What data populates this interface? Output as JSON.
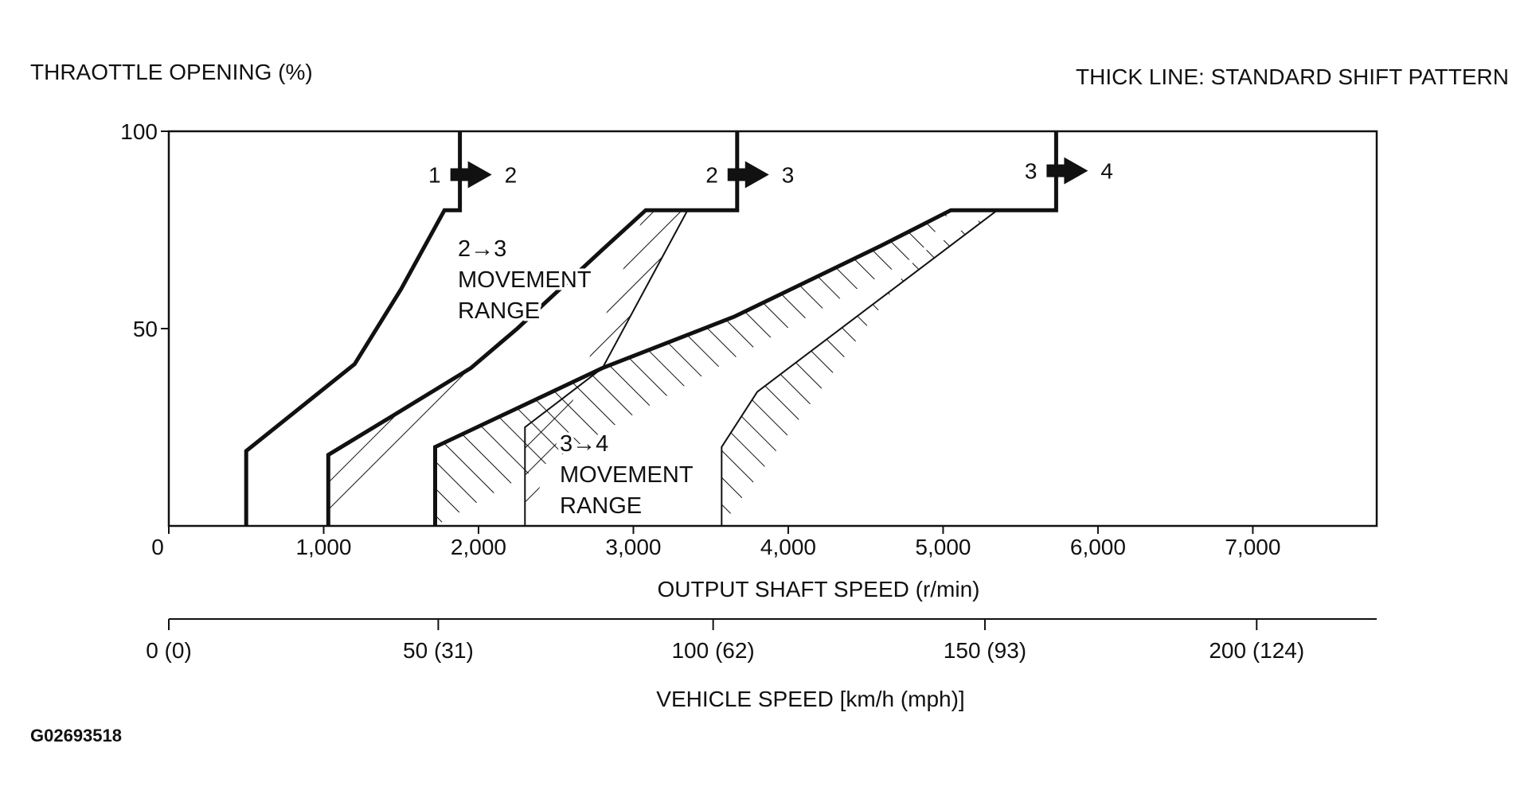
{
  "chart_data": {
    "type": "line",
    "ylabel": "THRAOTTLE OPENING (%)",
    "legend_note": "THICK LINE: STANDARD SHIFT PATTERN",
    "xlabel": "OUTPUT SHAFT SPEED (r/min)",
    "x2label": "VEHICLE SPEED [km/h (mph)]",
    "xlim": [
      0,
      7800
    ],
    "ylim": [
      0,
      100
    ],
    "y_ticks": [
      {
        "v": 100,
        "label": "100"
      },
      {
        "v": 50,
        "label": "50"
      }
    ],
    "x_ticks": [
      {
        "v": 0,
        "label": "0"
      },
      {
        "v": 1000,
        "label": "1,000"
      },
      {
        "v": 2000,
        "label": "2,000"
      },
      {
        "v": 3000,
        "label": "3,000"
      },
      {
        "v": 4000,
        "label": "4,000"
      },
      {
        "v": 5000,
        "label": "5,000"
      },
      {
        "v": 6000,
        "label": "6,000"
      },
      {
        "v": 7000,
        "label": "7,000"
      }
    ],
    "x2_ticks": [
      {
        "v": 0,
        "label": "0 (0)"
      },
      {
        "v": 1740,
        "label": "50 (31)"
      },
      {
        "v": 3515,
        "label": "100 (62)"
      },
      {
        "v": 5270,
        "label": "150 (93)"
      },
      {
        "v": 7025,
        "label": "200 (124)"
      }
    ],
    "series": [
      {
        "name": "1 → 2",
        "points": [
          [
            500,
            0
          ],
          [
            500,
            19
          ],
          [
            1200,
            41
          ],
          [
            1500,
            60
          ],
          [
            1780,
            80
          ],
          [
            1880,
            80
          ],
          [
            1880,
            100
          ]
        ]
      },
      {
        "name": "2 → 3",
        "points": [
          [
            1030,
            0
          ],
          [
            1030,
            18
          ],
          [
            1450,
            28
          ],
          [
            1950,
            40
          ],
          [
            2250,
            50
          ],
          [
            2800,
            70
          ],
          [
            3080,
            80
          ],
          [
            3670,
            80
          ],
          [
            3670,
            100
          ]
        ]
      },
      {
        "name": "3 → 4",
        "points": [
          [
            1720,
            0
          ],
          [
            1720,
            20
          ],
          [
            2800,
            40
          ],
          [
            3650,
            53
          ],
          [
            4600,
            71
          ],
          [
            5050,
            80
          ],
          [
            5730,
            80
          ],
          [
            5730,
            100
          ]
        ]
      }
    ],
    "ranges": [
      {
        "label": "2→3\nMOVEMENT\nRANGE",
        "outer": [
          [
            2800,
            70
          ],
          [
            3080,
            80
          ],
          [
            3350,
            80
          ],
          [
            2800,
            40
          ],
          [
            2300,
            25
          ],
          [
            2300,
            0
          ]
        ]
      },
      {
        "label": "3→4\nMOVEMENT\nRANGE",
        "outer": [
          [
            5350,
            80
          ],
          [
            3800,
            34
          ],
          [
            3570,
            20
          ],
          [
            3570,
            0
          ]
        ]
      }
    ],
    "shift_markers": [
      {
        "from": "1",
        "to": "2",
        "x": 1880,
        "y": 89
      },
      {
        "from": "2",
        "to": "3",
        "x": 3670,
        "y": 89
      },
      {
        "from": "3",
        "to": "4",
        "x": 5730,
        "y": 90
      }
    ]
  },
  "figure_code": "G02693518"
}
